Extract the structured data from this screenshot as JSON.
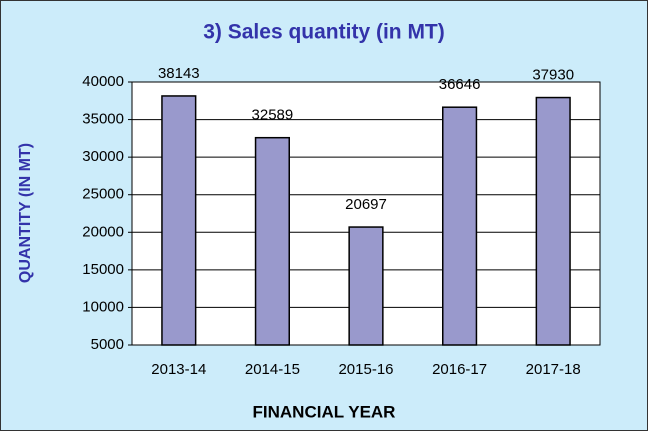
{
  "chart_data": {
    "type": "bar",
    "title": "3)  Sales quantity (in MT)",
    "x_label": "FINANCIAL YEAR",
    "y_label": "QUANTITY (IN MT)",
    "categories": [
      "2013-14",
      "2014-15",
      "2015-16",
      "2016-17",
      "2017-18"
    ],
    "values": [
      38143,
      32589,
      20697,
      36646,
      37930
    ],
    "color": "#9999cc",
    "ylim": [
      5000,
      40000
    ],
    "yticks": [
      5000,
      10000,
      15000,
      20000,
      25000,
      30000,
      35000,
      40000
    ],
    "grid": true
  }
}
